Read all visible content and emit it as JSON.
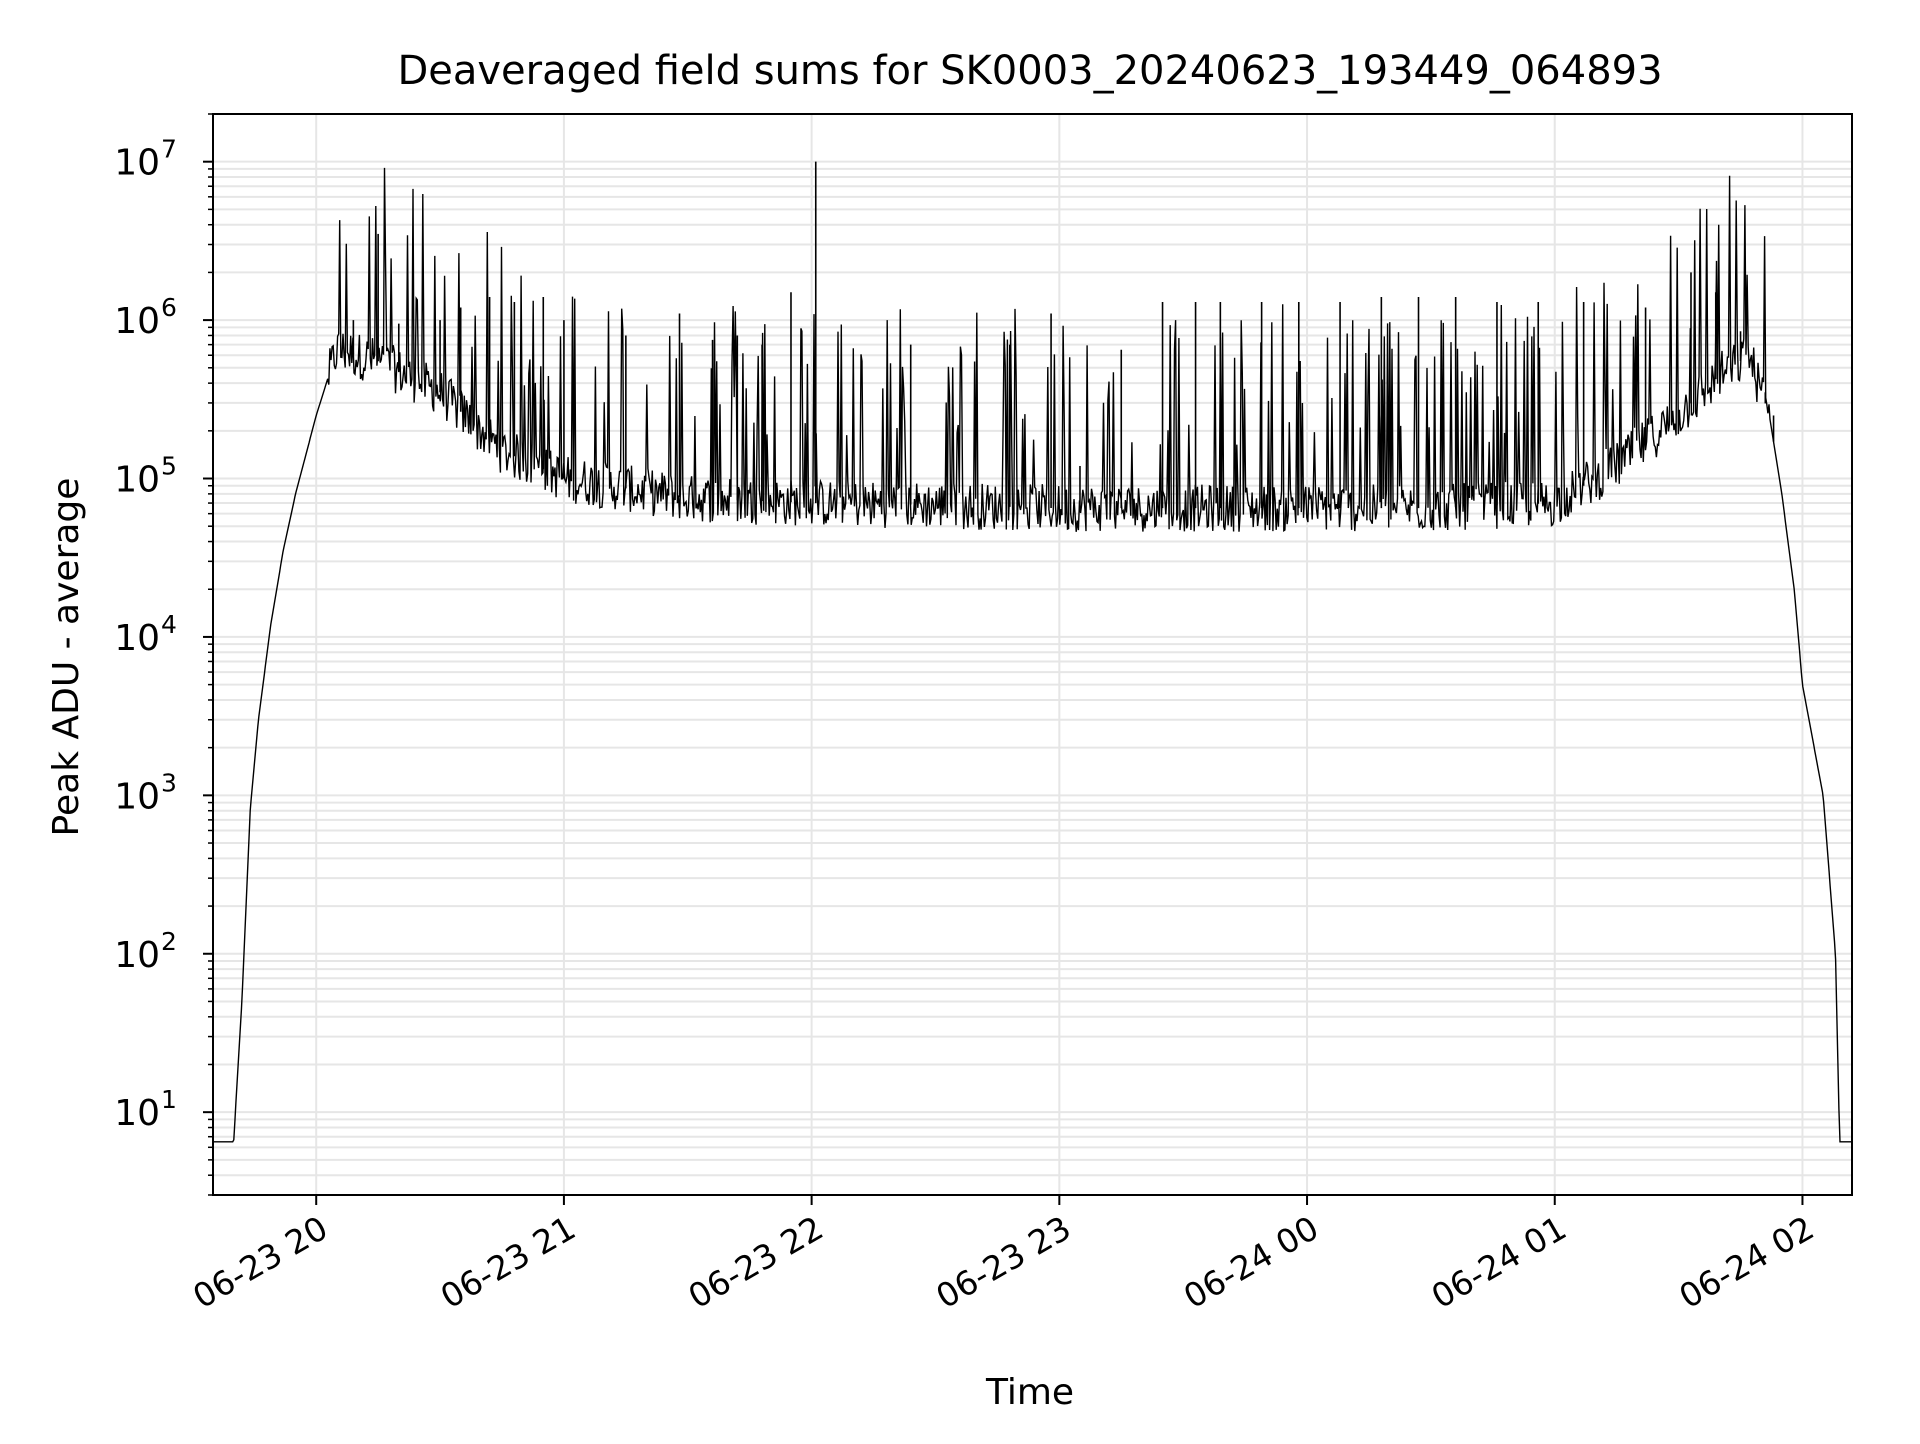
{
  "chart_data": {
    "type": "line",
    "title": "Deaveraged field sums for SK0003_20240623_193449_064893",
    "xlabel": "Time",
    "ylabel": "Peak ADU - average",
    "yscale": "log",
    "xlim": [
      "2024-06-23 19:35",
      "2024-06-24 02:12"
    ],
    "ylim": [
      3,
      20000000
    ],
    "grid": true,
    "x_ticks": [
      {
        "x": "2024-06-23 20:00",
        "label": "06-23 20"
      },
      {
        "x": "2024-06-23 21:00",
        "label": "06-23 21"
      },
      {
        "x": "2024-06-23 22:00",
        "label": "06-23 22"
      },
      {
        "x": "2024-06-23 23:00",
        "label": "06-23 23"
      },
      {
        "x": "2024-06-24 00:00",
        "label": "06-24 00"
      },
      {
        "x": "2024-06-24 01:00",
        "label": "06-24 01"
      },
      {
        "x": "2024-06-24 02:00",
        "label": "06-24 02"
      }
    ],
    "y_ticks": [
      {
        "y": 10,
        "base": "10",
        "exp": "1"
      },
      {
        "y": 100,
        "base": "10",
        "exp": "2"
      },
      {
        "y": 1000,
        "base": "10",
        "exp": "3"
      },
      {
        "y": 10000,
        "base": "10",
        "exp": "4"
      },
      {
        "y": 100000,
        "base": "10",
        "exp": "5"
      },
      {
        "y": 1000000,
        "base": "10",
        "exp": "6"
      },
      {
        "y": 10000000,
        "base": "10",
        "exp": "7"
      }
    ],
    "series": [
      {
        "color": "#000000",
        "baseline": [
          [
            "2024-06-23 19:35",
            6.5
          ],
          [
            "2024-06-23 19:40",
            6.5
          ],
          [
            "2024-06-23 19:42",
            50
          ],
          [
            "2024-06-23 19:44",
            800
          ],
          [
            "2024-06-23 19:46",
            3000
          ],
          [
            "2024-06-23 19:49",
            12000
          ],
          [
            "2024-06-23 19:52",
            35000
          ],
          [
            "2024-06-23 19:55",
            80000
          ],
          [
            "2024-06-23 20:00",
            250000
          ],
          [
            "2024-06-23 20:05",
            650000
          ],
          [
            "2024-06-23 20:15",
            550000
          ],
          [
            "2024-06-23 20:30",
            350000
          ],
          [
            "2024-06-23 20:45",
            150000
          ],
          [
            "2024-06-23 21:00",
            100000
          ],
          [
            "2024-06-23 21:30",
            75000
          ],
          [
            "2024-06-23 22:00",
            70000
          ],
          [
            "2024-06-23 22:30",
            68000
          ],
          [
            "2024-06-23 23:00",
            65000
          ],
          [
            "2024-06-23 23:30",
            65000
          ],
          [
            "2024-06-24 00:00",
            65000
          ],
          [
            "2024-06-24 00:30",
            65000
          ],
          [
            "2024-06-24 01:00",
            70000
          ],
          [
            "2024-06-24 01:15",
            120000
          ],
          [
            "2024-06-24 01:30",
            250000
          ],
          [
            "2024-06-24 01:40",
            450000
          ],
          [
            "2024-06-24 01:47",
            600000
          ],
          [
            "2024-06-24 01:52",
            250000
          ],
          [
            "2024-06-24 01:55",
            80000
          ],
          [
            "2024-06-24 01:58",
            20000
          ],
          [
            "2024-06-24 02:00",
            5000
          ],
          [
            "2024-06-24 02:05",
            1000
          ],
          [
            "2024-06-24 02:08",
            100
          ],
          [
            "2024-06-24 02:09",
            6.5
          ],
          [
            "2024-06-24 02:12",
            6.5
          ]
        ],
        "spikes": [
          [
            "2024-06-23 20:15",
            3500000
          ],
          [
            "2024-06-23 20:09",
            1000000
          ],
          [
            "2024-06-23 20:20",
            950000
          ],
          [
            "2024-06-23 20:30",
            1000000
          ],
          [
            "2024-06-23 20:35",
            1200000
          ],
          [
            "2024-06-23 20:42",
            1400000
          ],
          [
            "2024-06-23 20:48",
            1300000
          ],
          [
            "2024-06-23 20:55",
            1400000
          ],
          [
            "2024-06-23 21:00",
            1000000
          ],
          [
            "2024-06-23 21:15",
            800000
          ],
          [
            "2024-06-23 21:28",
            1100000
          ],
          [
            "2024-06-23 21:36",
            750000
          ],
          [
            "2024-06-23 21:42",
            800000
          ],
          [
            "2024-06-23 21:48",
            700000
          ],
          [
            "2024-06-23 21:55",
            1500000
          ],
          [
            "2024-06-23 22:01",
            10000000
          ],
          [
            "2024-06-23 22:24",
            700000
          ],
          [
            "2024-06-23 22:48",
            700000
          ],
          [
            "2024-06-23 22:58",
            1100000
          ],
          [
            "2024-06-23 23:05",
            120000
          ],
          [
            "2024-06-23 23:15",
            650000
          ],
          [
            "2024-06-23 23:25",
            1300000
          ],
          [
            "2024-06-23 23:33",
            1300000
          ],
          [
            "2024-06-23 23:39",
            1300000
          ],
          [
            "2024-06-23 23:49",
            1300000
          ],
          [
            "2024-06-23 23:58",
            1300000
          ],
          [
            "2024-06-24 00:08",
            1300000
          ],
          [
            "2024-06-24 00:18",
            1400000
          ],
          [
            "2024-06-24 00:27",
            1400000
          ],
          [
            "2024-06-24 00:36",
            1400000
          ],
          [
            "2024-06-24 00:46",
            1300000
          ],
          [
            "2024-06-24 00:56",
            1300000
          ],
          [
            "2024-06-24 01:07",
            1300000
          ],
          [
            "2024-06-24 01:22",
            1200000
          ],
          [
            "2024-06-24 01:33",
            2000000
          ],
          [
            "2024-06-24 01:39",
            1500000
          ],
          [
            "2024-06-24 01:45",
            850000
          ],
          [
            "2024-06-24 01:51",
            350000
          ],
          [
            "2024-06-24 01:53",
            250000
          ]
        ]
      }
    ]
  }
}
